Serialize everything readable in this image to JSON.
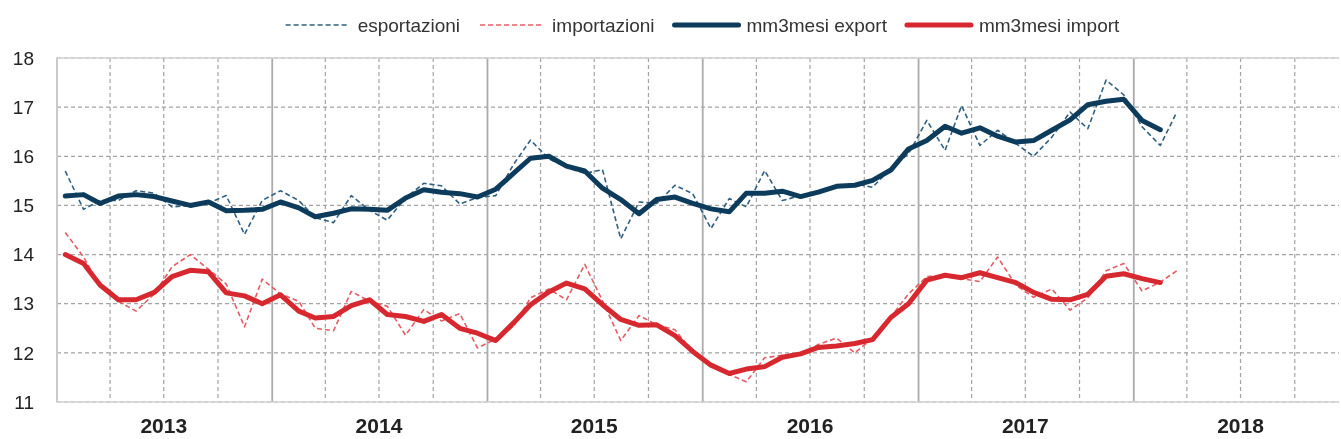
{
  "chart_data": {
    "type": "line",
    "x": [
      "2013-01-15",
      "2013-02-15",
      "2013-03-15",
      "2013-04-15",
      "2013-05-15",
      "2013-06-15",
      "2013-07-15",
      "2013-08-15",
      "2013-09-15",
      "2013-10-15",
      "2013-11-15",
      "2013-12-15",
      "2014-01-15",
      "2014-02-15",
      "2014-03-15",
      "2014-04-15",
      "2014-05-15",
      "2014-06-15",
      "2014-07-15",
      "2014-08-15",
      "2014-09-15",
      "2014-10-15",
      "2014-11-15",
      "2014-12-15",
      "2015-01-15",
      "2015-02-15",
      "2015-03-15",
      "2015-04-15",
      "2015-05-15",
      "2015-06-15",
      "2015-07-15",
      "2015-08-15",
      "2015-09-15",
      "2015-10-15",
      "2015-11-15",
      "2015-12-15",
      "2016-01-15",
      "2016-02-15",
      "2016-03-15",
      "2016-04-15",
      "2016-05-15",
      "2016-06-15",
      "2016-07-15",
      "2016-08-15",
      "2016-09-15",
      "2016-10-15",
      "2016-11-15",
      "2016-12-15",
      "2017-01-15",
      "2017-02-15",
      "2017-03-15",
      "2017-04-15",
      "2017-05-15",
      "2017-06-15",
      "2017-07-15",
      "2017-08-15",
      "2017-09-15",
      "2017-10-15",
      "2017-11-15",
      "2017-12-15",
      "2018-01-15",
      "2018-02-15",
      "2018-03-15"
    ],
    "xlim": [
      "2013-01-01",
      "2018-12-15"
    ],
    "xticks": [
      {
        "value": "2013-01-01",
        "label": null
      },
      {
        "value": "2013-04-01",
        "label": null
      },
      {
        "value": "2013-07-01",
        "label": "2013"
      },
      {
        "value": "2013-10-01",
        "label": null
      },
      {
        "value": "2014-01-01",
        "label": null
      },
      {
        "value": "2014-04-01",
        "label": null
      },
      {
        "value": "2014-07-01",
        "label": "2014"
      },
      {
        "value": "2014-10-01",
        "label": null
      },
      {
        "value": "2015-01-01",
        "label": null
      },
      {
        "value": "2015-04-01",
        "label": null
      },
      {
        "value": "2015-07-01",
        "label": "2015"
      },
      {
        "value": "2015-10-01",
        "label": null
      },
      {
        "value": "2016-01-01",
        "label": null
      },
      {
        "value": "2016-04-01",
        "label": null
      },
      {
        "value": "2016-07-01",
        "label": "2016"
      },
      {
        "value": "2016-10-01",
        "label": null
      },
      {
        "value": "2017-01-01",
        "label": null
      },
      {
        "value": "2017-04-01",
        "label": null
      },
      {
        "value": "2017-07-01",
        "label": "2017"
      },
      {
        "value": "2017-10-01",
        "label": null
      },
      {
        "value": "2018-01-01",
        "label": null
      },
      {
        "value": "2018-04-01",
        "label": null
      },
      {
        "value": "2018-07-01",
        "label": "2018"
      },
      {
        "value": "2018-10-01",
        "label": null
      }
    ],
    "ylim": [
      11,
      18
    ],
    "yticks": [
      11,
      12,
      13,
      14,
      15,
      16,
      17,
      18
    ],
    "grid": true,
    "legend": "top",
    "series": [
      {
        "name": "esportazioni",
        "color": "#2f5f80",
        "line_style": "dashed",
        "values": [
          15.7,
          14.92,
          15.1,
          15.1,
          15.3,
          15.25,
          14.97,
          15.0,
          15.05,
          15.2,
          14.41,
          15.1,
          15.3,
          15.1,
          14.75,
          14.65,
          15.2,
          14.9,
          14.7,
          15.15,
          15.45,
          15.4,
          15.03,
          15.16,
          15.2,
          15.85,
          16.33,
          15.95,
          15.78,
          15.65,
          15.73,
          14.32,
          15.07,
          15.04,
          15.41,
          15.24,
          14.53,
          15.14,
          14.97,
          15.71,
          15.1,
          15.2,
          15.27,
          15.37,
          15.44,
          15.37,
          15.75,
          16.05,
          16.73,
          16.12,
          17.03,
          16.22,
          16.53,
          16.26,
          16.0,
          16.39,
          16.9,
          16.56,
          17.55,
          17.25,
          16.6,
          16.22,
          16.9
        ]
      },
      {
        "name": "importazioni",
        "color": "#e35d66",
        "line_style": "dashed",
        "values": [
          14.45,
          13.95,
          13.35,
          13.05,
          12.85,
          13.2,
          13.75,
          14.0,
          13.7,
          13.4,
          12.53,
          13.5,
          13.2,
          13.05,
          12.5,
          12.45,
          13.25,
          13.05,
          12.95,
          12.36,
          12.88,
          12.65,
          12.8,
          12.1,
          12.28,
          12.55,
          13.12,
          13.3,
          13.08,
          13.8,
          13.06,
          12.25,
          12.76,
          12.57,
          12.47,
          12.02,
          11.72,
          11.56,
          11.41,
          11.9,
          11.95,
          11.97,
          12.17,
          12.3,
          12.0,
          12.3,
          12.73,
          13.2,
          13.55,
          13.58,
          13.51,
          13.45,
          13.95,
          13.38,
          13.13,
          13.3,
          12.87,
          13.12,
          13.67,
          13.82,
          13.26,
          13.44,
          13.67
        ]
      },
      {
        "name": "mm3mesi export",
        "color": "#0c3b5c",
        "line_style": "solid",
        "values": [
          15.19,
          15.22,
          15.04,
          15.19,
          15.22,
          15.18,
          15.09,
          15.0,
          15.07,
          14.89,
          14.9,
          14.92,
          15.07,
          14.95,
          14.77,
          14.84,
          14.93,
          14.92,
          14.9,
          15.15,
          15.32,
          15.27,
          15.24,
          15.17,
          15.33,
          15.66,
          15.96,
          16.0,
          15.8,
          15.7,
          15.35,
          15.12,
          14.83,
          15.12,
          15.17,
          15.04,
          14.93,
          14.87,
          15.25,
          15.25,
          15.29,
          15.18,
          15.27,
          15.39,
          15.41,
          15.51,
          15.72,
          16.15,
          16.32,
          16.61,
          16.47,
          16.58,
          16.41,
          16.29,
          16.32,
          16.53,
          16.74,
          17.05,
          17.12,
          17.16,
          16.73,
          16.54,
          null
        ]
      },
      {
        "name": "mm3mesi import",
        "color": "#d7282f",
        "line_style": "solid",
        "values": [
          14.0,
          13.82,
          13.38,
          13.08,
          13.08,
          13.23,
          13.55,
          13.68,
          13.65,
          13.22,
          13.16,
          13.0,
          13.18,
          12.85,
          12.71,
          12.74,
          12.96,
          13.08,
          12.78,
          12.74,
          12.64,
          12.78,
          12.5,
          12.4,
          12.25,
          12.62,
          12.98,
          13.24,
          13.42,
          13.3,
          12.98,
          12.68,
          12.56,
          12.57,
          12.35,
          12.03,
          11.75,
          11.58,
          11.67,
          11.72,
          11.91,
          11.98,
          12.11,
          12.14,
          12.19,
          12.27,
          12.72,
          13.0,
          13.48,
          13.58,
          13.53,
          13.63,
          13.53,
          13.43,
          13.23,
          13.09,
          13.08,
          13.19,
          13.56,
          13.61,
          13.51,
          13.43,
          null
        ]
      }
    ]
  }
}
